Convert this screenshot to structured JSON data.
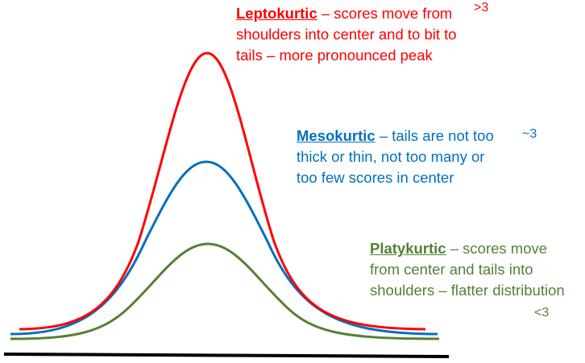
{
  "colors": {
    "leptokurtic": "#ff0000",
    "mesokurtic": "#0070c0",
    "platykurtic": "#538135",
    "baseline": "#000000"
  },
  "curves": {
    "leptokurtic": {
      "term": "Leptokurtic",
      "desc_line1": " – scores move from",
      "desc_line2": "shoulders into center and to bit to",
      "desc_line3": "tails – more pronounced peak",
      "kurtosis": ">3"
    },
    "mesokurtic": {
      "term": "Mesokurtic",
      "desc_line1": " – tails are not too",
      "desc_line2": "thick or thin, not too many or",
      "desc_line3": "too few scores in center",
      "kurtosis": "~3"
    },
    "platykurtic": {
      "term": "Platykurtic",
      "desc_line1": " – scores move",
      "desc_line2": "from center and tails into",
      "desc_line3": "shoulders – flatter distribution",
      "kurtosis": "<3"
    }
  }
}
